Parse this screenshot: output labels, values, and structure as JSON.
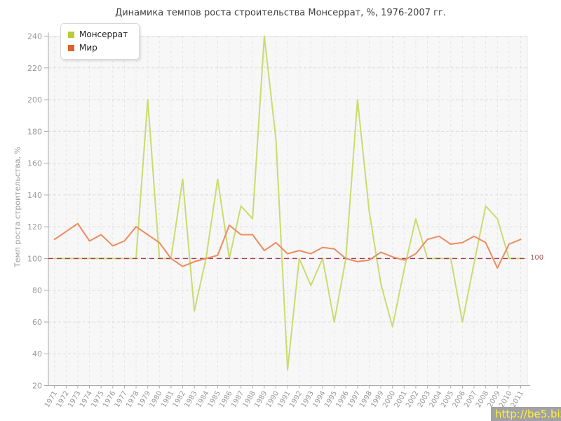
{
  "page": {
    "title": "Динамика темпов роста строительства Монсеррат, %, 1976-2007 гг."
  },
  "watermark": {
    "text": "http://be5.biz/"
  },
  "chart_data": {
    "type": "line",
    "title": "Динамика темпов роста строительства Монсеррат, %, 1976-2007 гг.",
    "xlabel": "",
    "ylabel": "Темп роста строительства, %",
    "ylim": [
      20,
      240
    ],
    "y_tick_step": 20,
    "grid": true,
    "legend_position": "top-left",
    "x": [
      1971,
      1972,
      1973,
      1974,
      1975,
      1976,
      1977,
      1978,
      1979,
      1980,
      1981,
      1982,
      1983,
      1984,
      1985,
      1986,
      1987,
      1988,
      1989,
      1990,
      1991,
      1992,
      1993,
      1994,
      1995,
      1996,
      1997,
      1998,
      1999,
      2000,
      2001,
      2002,
      2003,
      2004,
      2005,
      2006,
      2007,
      2008,
      2009,
      2010,
      2011
    ],
    "series": [
      {
        "name": "Монсеррат",
        "slug": "montserrat",
        "line_color": "#c9dc6e",
        "marker_color": "#b5ce36",
        "values": [
          100,
          100,
          100,
          100,
          100,
          100,
          100,
          100,
          200,
          100,
          100,
          150,
          67,
          100,
          150,
          100,
          133,
          125,
          240,
          175,
          30,
          100,
          83,
          100,
          60,
          100,
          200,
          130,
          84,
          57,
          93,
          125,
          100,
          100,
          100,
          60,
          97,
          133,
          125,
          100,
          100
        ]
      },
      {
        "name": "Мир",
        "slug": "mir",
        "line_color": "#ee8b5e",
        "marker_color": "#e0612c",
        "values": [
          112,
          117,
          122,
          111,
          115,
          108,
          111,
          120,
          115,
          110,
          100,
          95,
          98,
          100,
          102,
          121,
          115,
          115,
          105,
          110,
          103,
          105,
          103,
          107,
          106,
          100,
          98,
          99,
          104,
          101,
          99,
          103,
          112,
          114,
          109,
          110,
          114,
          110,
          94,
          109,
          112
        ]
      }
    ],
    "reference_line": {
      "value": 100,
      "label": "100",
      "color": "#a83b57"
    },
    "axis_text_color": "#999999",
    "plot_bg": "#f7f7f7"
  }
}
